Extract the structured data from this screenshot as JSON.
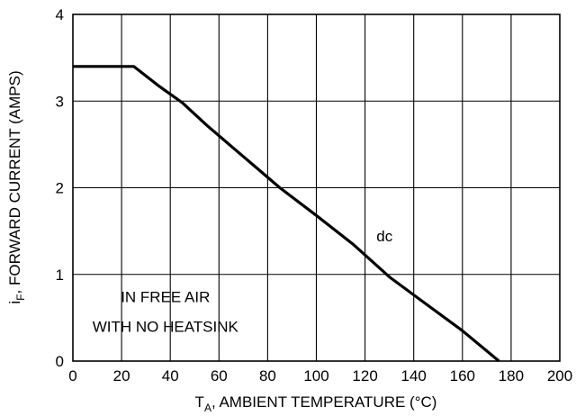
{
  "chart_data": {
    "type": "line",
    "title": "",
    "xlabel": {
      "main": "T",
      "sub": "A",
      "rest": ", AMBIENT TEMPERATURE (°C)"
    },
    "ylabel": {
      "main": "i",
      "sub": "F",
      "rest": ", FORWARD CURRENT (AMPS)"
    },
    "xlim": [
      0,
      200
    ],
    "ylim": [
      0,
      4
    ],
    "xticks": [
      "0",
      "20",
      "40",
      "60",
      "80",
      "100",
      "120",
      "140",
      "160",
      "180",
      "200"
    ],
    "yticks": [
      "0",
      "1",
      "2",
      "3",
      "4"
    ],
    "grid": true,
    "series": [
      {
        "name": "dc",
        "x": [
          0,
          25,
          35,
          45,
          55,
          65,
          75,
          85,
          100,
          115,
          130,
          145,
          160,
          175
        ],
        "y": [
          3.4,
          3.4,
          3.18,
          2.98,
          2.72,
          2.48,
          2.24,
          2.0,
          1.68,
          1.35,
          0.97,
          0.66,
          0.35,
          0.0
        ]
      }
    ],
    "annotations": [
      {
        "text": "dc",
        "x": 128,
        "y": 1.38
      },
      {
        "text": "IN FREE AIR",
        "x": 38,
        "y": 0.68
      },
      {
        "text": "WITH NO HEATSINK",
        "x": 38,
        "y": 0.34
      }
    ]
  }
}
